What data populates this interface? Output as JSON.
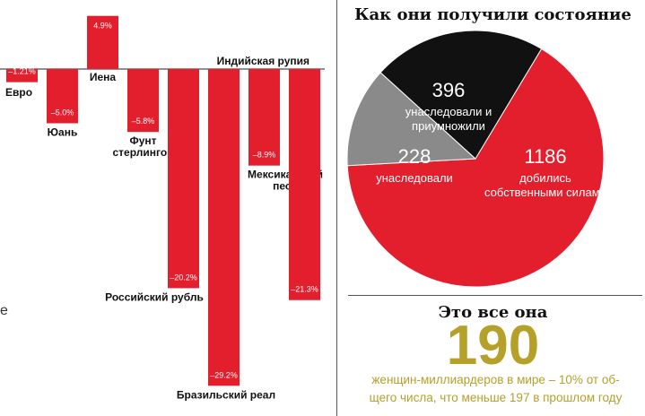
{
  "left_chart": {
    "chart_data": {
      "type": "bar",
      "categories": [
        "Евро",
        "Юань",
        "Иена",
        "Фунт стерлингов",
        "Российский рубль",
        "Бразильский реал",
        "Мексиканский песо",
        "Индийская рупия"
      ],
      "values": [
        -1.21,
        -5.0,
        4.9,
        -5.8,
        -20.2,
        -29.2,
        -8.9,
        -21.3
      ],
      "value_labels": [
        "–1.21%",
        "–5.0%",
        "4.9%",
        "–5.8%",
        "–20.2%",
        "–29.2%",
        "–8.9%",
        "–21.3%"
      ],
      "category_labels": [
        [
          "Евро"
        ],
        [
          "Юань"
        ],
        [
          "Иена"
        ],
        [
          "Фунт",
          "стерлингов"
        ],
        [
          "Российский рубль"
        ],
        [
          "Бразильский реал"
        ],
        [
          "Мексиканский",
          "песо"
        ],
        [
          "Индийская рупия"
        ]
      ],
      "ylim": [
        -31,
        6
      ],
      "bar_color": "#e31e2d"
    },
    "cut_letter": "е"
  },
  "right_top": {
    "title": "Как они получили состояние",
    "chart_data": {
      "type": "pie",
      "slices": [
        {
          "value": 1186,
          "label": [
            "1186",
            "добились",
            "собственными силами"
          ],
          "color": "#e31e2d"
        },
        {
          "value": 228,
          "label": [
            "228",
            "унаследовали"
          ],
          "color": "#8a8a8a"
        },
        {
          "value": 396,
          "label": [
            "396",
            "унаследовали и",
            "приумножили"
          ],
          "color": "#111111"
        }
      ]
    }
  },
  "right_bottom": {
    "title": "Это все она",
    "big_number": "190",
    "caption_line1": "женщин-миллиардеров в мире – 10% от об-",
    "caption_line2": "щего числа, что меньше 197 в прошлом году",
    "accent_color": "#b5a02a"
  }
}
